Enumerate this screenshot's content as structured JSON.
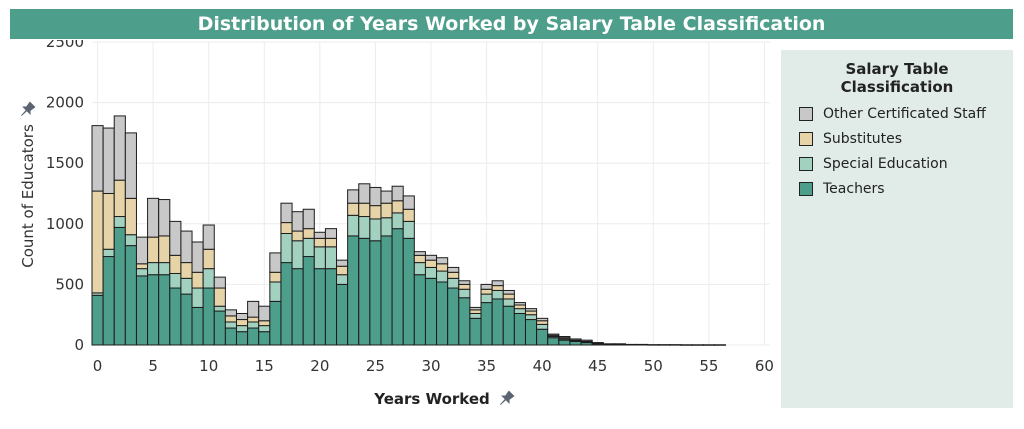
{
  "title": "Distribution of Years Worked by Salary Table Classification",
  "legend": {
    "title": "Salary Table Classification",
    "items": [
      {
        "label": "Other Certificated Staff",
        "color": "#c8c8c8"
      },
      {
        "label": "Substitutes",
        "color": "#e6d3a8"
      },
      {
        "label": "Special Education",
        "color": "#a2d1c0"
      },
      {
        "label": "Teachers",
        "color": "#4e9e8c"
      }
    ]
  },
  "chart_data": {
    "type": "bar",
    "stacked": true,
    "title": "Distribution of Years Worked by Salary Table Classification",
    "xlabel": "Years Worked",
    "ylabel": "Count of Educators",
    "xlim": [
      -0.5,
      60.5
    ],
    "ylim": [
      0,
      2500
    ],
    "xticks": [
      0,
      5,
      10,
      15,
      20,
      25,
      30,
      35,
      40,
      45,
      50,
      55,
      60
    ],
    "yticks": [
      0,
      500,
      1000,
      1500,
      2000,
      2500
    ],
    "grid": true,
    "legend_position": "right",
    "x": [
      0,
      1,
      2,
      3,
      4,
      5,
      6,
      7,
      8,
      9,
      10,
      11,
      12,
      13,
      14,
      15,
      16,
      17,
      18,
      19,
      20,
      21,
      22,
      23,
      24,
      25,
      26,
      27,
      28,
      29,
      30,
      31,
      32,
      33,
      34,
      35,
      36,
      37,
      38,
      39,
      40,
      41,
      42,
      43,
      44,
      45,
      46,
      47,
      48,
      49,
      50,
      51,
      52,
      53,
      54,
      55,
      56,
      57,
      58,
      59,
      60
    ],
    "series": [
      {
        "name": "Teachers",
        "color": "#4e9e8c",
        "values": [
          410,
          730,
          970,
          820,
          570,
          580,
          580,
          470,
          420,
          310,
          470,
          280,
          140,
          110,
          140,
          110,
          360,
          680,
          630,
          730,
          630,
          630,
          500,
          900,
          880,
          860,
          900,
          960,
          880,
          580,
          550,
          520,
          470,
          390,
          220,
          350,
          380,
          320,
          260,
          210,
          130,
          60,
          40,
          30,
          20,
          10,
          5,
          5,
          0,
          0,
          0,
          0,
          0,
          0,
          0,
          0,
          0,
          0,
          0,
          0,
          0
        ]
      },
      {
        "name": "Special Education",
        "color": "#a2d1c0",
        "values": [
          20,
          60,
          90,
          90,
          60,
          100,
          100,
          120,
          130,
          160,
          160,
          40,
          50,
          50,
          50,
          50,
          160,
          240,
          230,
          150,
          180,
          180,
          80,
          170,
          180,
          180,
          150,
          130,
          140,
          100,
          90,
          90,
          80,
          70,
          40,
          70,
          70,
          60,
          40,
          40,
          40,
          10,
          10,
          5,
          5,
          0,
          0,
          0,
          0,
          0,
          0,
          0,
          0,
          0,
          0,
          0,
          0,
          0,
          0,
          0,
          0
        ]
      },
      {
        "name": "Substitutes",
        "color": "#e6d3a8",
        "values": [
          840,
          460,
          300,
          300,
          40,
          210,
          220,
          150,
          130,
          130,
          160,
          150,
          50,
          50,
          40,
          40,
          80,
          90,
          80,
          80,
          70,
          70,
          70,
          100,
          110,
          110,
          120,
          100,
          100,
          60,
          60,
          60,
          50,
          40,
          30,
          40,
          40,
          40,
          30,
          30,
          30,
          10,
          10,
          5,
          5,
          5,
          0,
          0,
          0,
          0,
          0,
          0,
          0,
          0,
          0,
          0,
          0,
          0,
          0,
          0,
          0
        ]
      },
      {
        "name": "Other Certificated Staff",
        "color": "#c8c8c8",
        "values": [
          540,
          540,
          530,
          540,
          220,
          320,
          300,
          280,
          260,
          250,
          200,
          90,
          50,
          50,
          130,
          120,
          160,
          160,
          160,
          160,
          50,
          80,
          50,
          110,
          160,
          150,
          100,
          120,
          110,
          30,
          40,
          50,
          40,
          30,
          20,
          40,
          40,
          30,
          20,
          20,
          20,
          10,
          10,
          10,
          10,
          5,
          5,
          5,
          5,
          5,
          3,
          3,
          3,
          2,
          2,
          2,
          2,
          0,
          0,
          0,
          0
        ]
      }
    ]
  }
}
